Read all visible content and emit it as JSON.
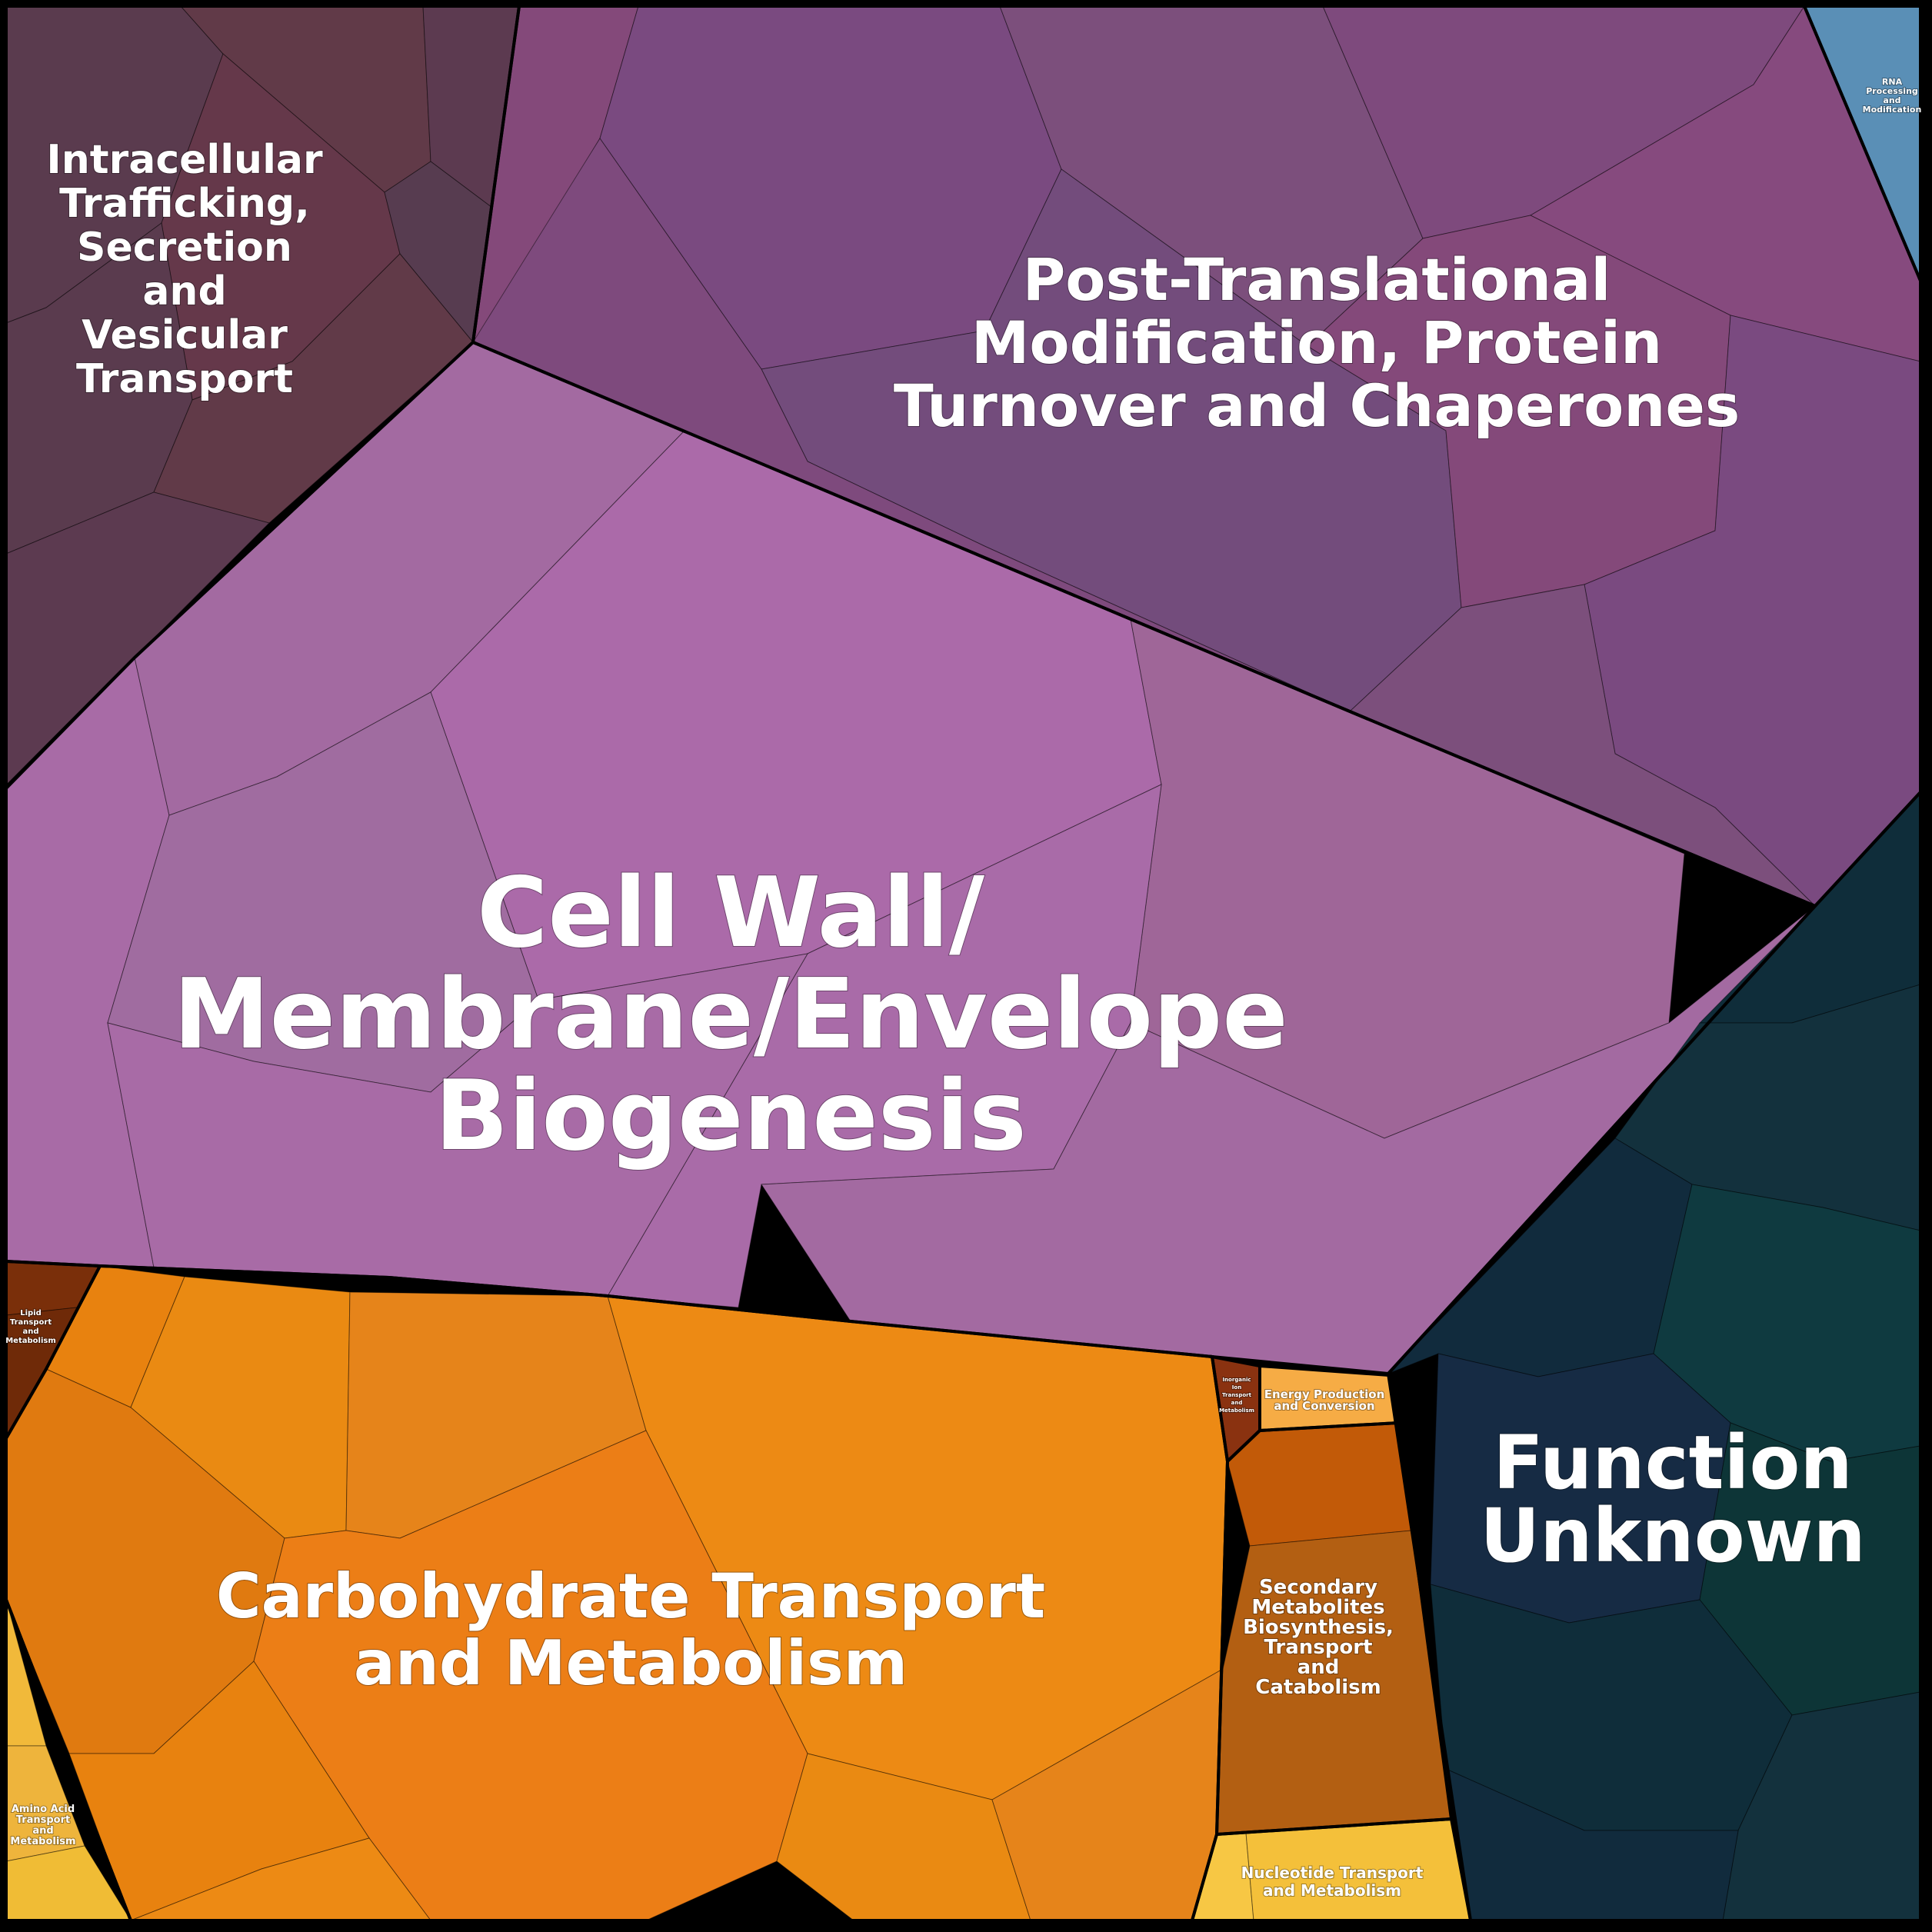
{
  "diagram": {
    "regions": [
      {
        "key": "cell_wall",
        "label": [
          "Cell Wall/",
          "Membrane/Envelope",
          "Biogenesis"
        ],
        "colors": [
          "#a86ba6",
          "#a36aa1",
          "#ab6aa9",
          "#a06ca0",
          "#9f6698",
          "#a96ba8"
        ]
      },
      {
        "key": "post_translational",
        "label": [
          "Post-Translational",
          "Modification, Protein",
          "Turnover and Chaperones"
        ],
        "colors": [
          "#84497a",
          "#7a4a80",
          "#7c4f7c",
          "#7e4a7d",
          "#864a7e",
          "#734c7c"
        ]
      },
      {
        "key": "intracellular",
        "label": [
          "Intracellular",
          "Trafficking,",
          "Secretion",
          "and",
          "Vesicular",
          "Transport"
        ],
        "colors": [
          "#5a3b4e",
          "#613a48",
          "#5c3a50",
          "#65384a",
          "#573c50"
        ]
      },
      {
        "key": "rna",
        "label": [
          "RNA",
          "Processing",
          "and",
          "Modification"
        ],
        "colors": [
          "#5a8fb6"
        ]
      },
      {
        "key": "function_unknown",
        "label": [
          "Function",
          "Unknown"
        ],
        "colors": [
          "#0f2d3a",
          "#13313d",
          "#112b3d",
          "#0f3a40",
          "#162b44",
          "#0d3537"
        ]
      },
      {
        "key": "carbohydrate",
        "label": [
          "Carbohydrate Transport",
          "and Metabolism"
        ],
        "colors": [
          "#e8820f",
          "#ea8a12",
          "#e6841a",
          "#ed8a14",
          "#e07a10",
          "#ec7e16"
        ]
      },
      {
        "key": "secondary_metabolites",
        "label": [
          "Secondary",
          "Metabolites",
          "Biosynthesis,",
          "Transport",
          "and",
          "Catabolism"
        ],
        "colors": [
          "#c25a08",
          "#b35f12",
          "#c06010"
        ]
      },
      {
        "key": "nucleotide",
        "label": [
          "Nucleotide Transport",
          "and Metabolism"
        ],
        "colors": [
          "#f7c744",
          "#f4c03a"
        ]
      },
      {
        "key": "amino_acid",
        "label": [
          "Amino Acid",
          "Transport",
          "and",
          "Metabolism"
        ],
        "colors": [
          "#f1b93a",
          "#eeb43c",
          "#f0bc35"
        ]
      },
      {
        "key": "lipid",
        "label": [
          "Lipid",
          "Transport",
          "and",
          "Metabolism"
        ],
        "colors": [
          "#7a2f0a",
          "#6f2a08"
        ]
      },
      {
        "key": "energy",
        "label": [
          "Energy Production",
          "and Conversion"
        ],
        "colors": [
          "#f6ac45"
        ]
      },
      {
        "key": "inorganic_ion",
        "label": [
          "Inorganic",
          "Ion",
          "Transport",
          "and",
          "Metabolism"
        ],
        "colors": [
          "#8a3210"
        ]
      }
    ]
  }
}
